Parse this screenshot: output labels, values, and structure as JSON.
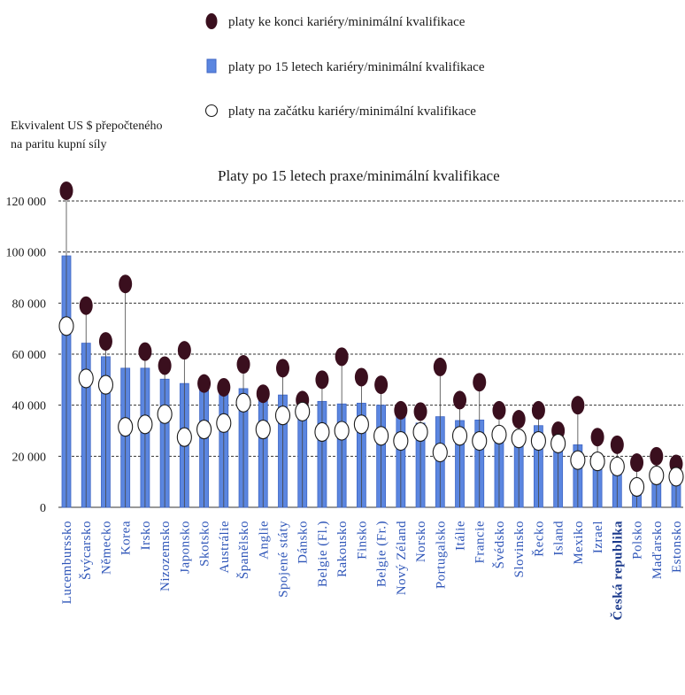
{
  "chart_data": {
    "type": "bar",
    "title": "Platy po 15 letech praxe/minimální kvalifikace",
    "ylabel_lines": [
      "Ekvivalent US $ přepočteného",
      "na paritu kupní síly"
    ],
    "ylim": [
      0,
      120000
    ],
    "yticks": [
      0,
      20000,
      40000,
      60000,
      80000,
      100000,
      120000
    ],
    "ytick_labels": [
      "0",
      "20 000",
      "40 000",
      "60 000",
      "80 000",
      "100 000",
      "120 000"
    ],
    "grid": "horizontal dashed",
    "legend": {
      "placement": "top",
      "items": [
        {
          "label": "platy ke konci kariéry/minimální kvalifikace",
          "marker": "filled-circle"
        },
        {
          "label": "platy po 15 letech kariéry/minimální kvalifikace",
          "marker": "bar"
        },
        {
          "label": "platy na začátku kariéry/minimální kvalifikace",
          "marker": "open-circle"
        }
      ]
    },
    "colors": {
      "bar": "#5b86e0",
      "bar_edge": "#3f66c4",
      "top_marker": "#3a0f1e",
      "start_marker": "#ffffff",
      "grid": "#333333",
      "axis_label": "#2e55b8"
    },
    "categories": [
      "Lucemburssko",
      "Švýcarsko",
      "Německo",
      "Korea",
      "Irsko",
      "Nizozemsko",
      "Japonsko",
      "Skotsko",
      "Austrálie",
      "Španělsko",
      "Anglie",
      "Spojené státy",
      "Dánsko",
      "Belgie (Fl.)",
      "Rakousko",
      "Finsko",
      "Belgie (Fr.)",
      "Nový Zéland",
      "Norsko",
      "Portugalsko",
      "Itálie",
      "Francie",
      "Švédsko",
      "Slovinsko",
      "Řecko",
      "Island",
      "Mexiko",
      "Izrael",
      "Česká republika",
      "Polsko",
      "Maďarsko",
      "Estonsko"
    ],
    "highlight_category": "Česká republika",
    "series": [
      {
        "name": "platy po 15 letech kariéry/minimální kvalifikace",
        "values": [
          98500,
          64300,
          59000,
          54500,
          54500,
          50200,
          48500,
          47000,
          45500,
          46500,
          43000,
          44000,
          39000,
          41500,
          40500,
          40800,
          40000,
          36000,
          33000,
          35500,
          34000,
          34200,
          29500,
          28200,
          32000,
          24000,
          24500,
          17000,
          16500,
          7500,
          12000,
          10000
        ]
      },
      {
        "name": "platy ke konci kariéry/minimální kvalifikace",
        "values": [
          124000,
          79000,
          65000,
          87500,
          61000,
          55500,
          61500,
          48500,
          47000,
          56000,
          44500,
          54500,
          42000,
          50000,
          59000,
          51000,
          48000,
          38000,
          37500,
          55000,
          42000,
          49000,
          38000,
          34500,
          38000,
          30000,
          40000,
          27500,
          24500,
          17500,
          20000,
          17000
        ]
      },
      {
        "name": "platy na začátku kariéry/minimální kvalifikace",
        "values": [
          71000,
          50500,
          48000,
          31500,
          32500,
          36500,
          27500,
          30500,
          33000,
          41000,
          30500,
          36000,
          37500,
          29500,
          30000,
          32500,
          28000,
          26000,
          29500,
          21500,
          28000,
          26000,
          28500,
          27000,
          26000,
          25000,
          18500,
          18000,
          16000,
          8000,
          12500,
          12000
        ]
      }
    ]
  }
}
